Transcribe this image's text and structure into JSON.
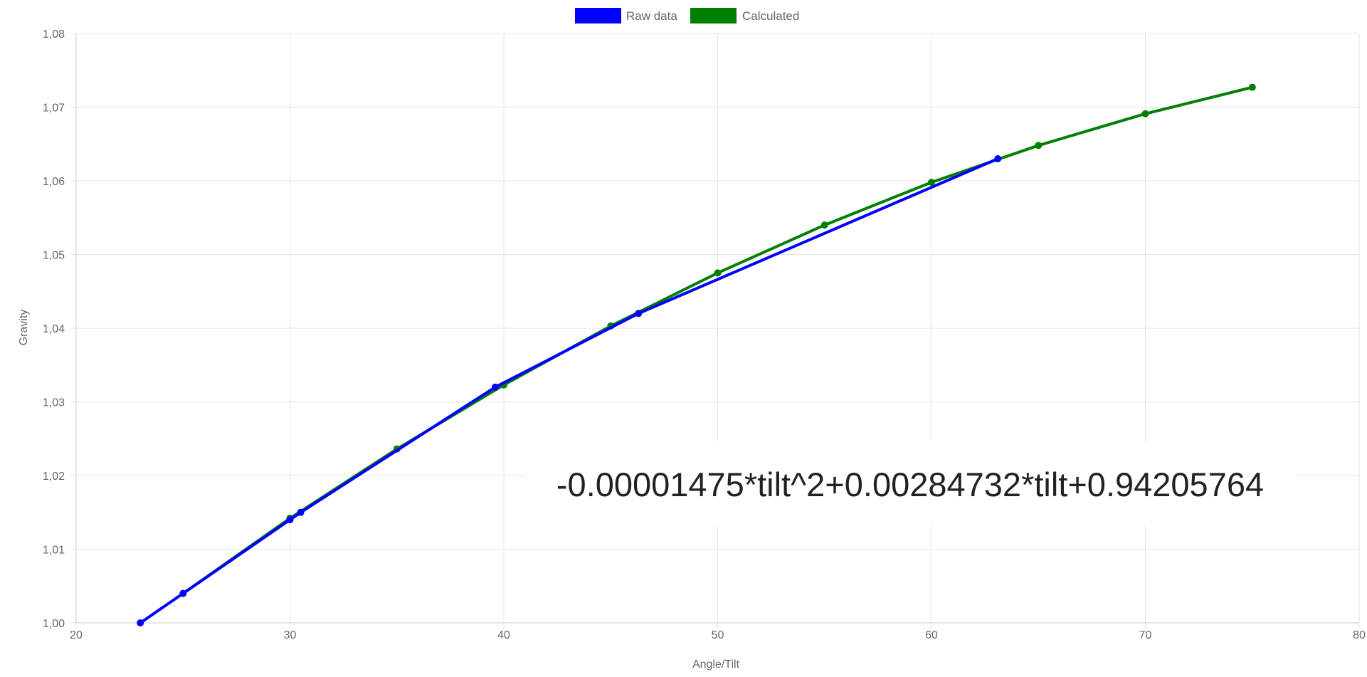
{
  "chart_data": {
    "type": "line",
    "title": "",
    "xlabel": "Angle/Tilt",
    "ylabel": "Gravity",
    "xlim": [
      20,
      80
    ],
    "ylim": [
      1.0,
      1.08
    ],
    "x_ticks": [
      "20",
      "30",
      "40",
      "50",
      "60",
      "70",
      "80"
    ],
    "y_ticks": [
      "1,00",
      "1,01",
      "1,02",
      "1,03",
      "1,04",
      "1,05",
      "1,06",
      "1,07",
      "1,08"
    ],
    "grid": true,
    "legend_position": "top-center",
    "series": [
      {
        "name": "Raw data",
        "color": "#0000ff",
        "points": [
          [
            23.0,
            1.0
          ],
          [
            25.0,
            1.004
          ],
          [
            30.0,
            1.014
          ],
          [
            30.5,
            1.015
          ],
          [
            39.6,
            1.032
          ],
          [
            46.3,
            1.042
          ],
          [
            63.1,
            1.063
          ]
        ]
      },
      {
        "name": "Calculated",
        "color": "#008000",
        "points": [
          [
            25,
            1.004
          ],
          [
            30,
            1.0142
          ],
          [
            35,
            1.0236
          ],
          [
            40,
            1.0323
          ],
          [
            45,
            1.0403
          ],
          [
            50,
            1.0475
          ],
          [
            55,
            1.054
          ],
          [
            60,
            1.0598
          ],
          [
            65,
            1.0648
          ],
          [
            70,
            1.0691
          ],
          [
            75,
            1.0727
          ]
        ]
      }
    ],
    "annotation": "-0.00001475*tilt^2+0.00284732*tilt+0.94205764"
  }
}
